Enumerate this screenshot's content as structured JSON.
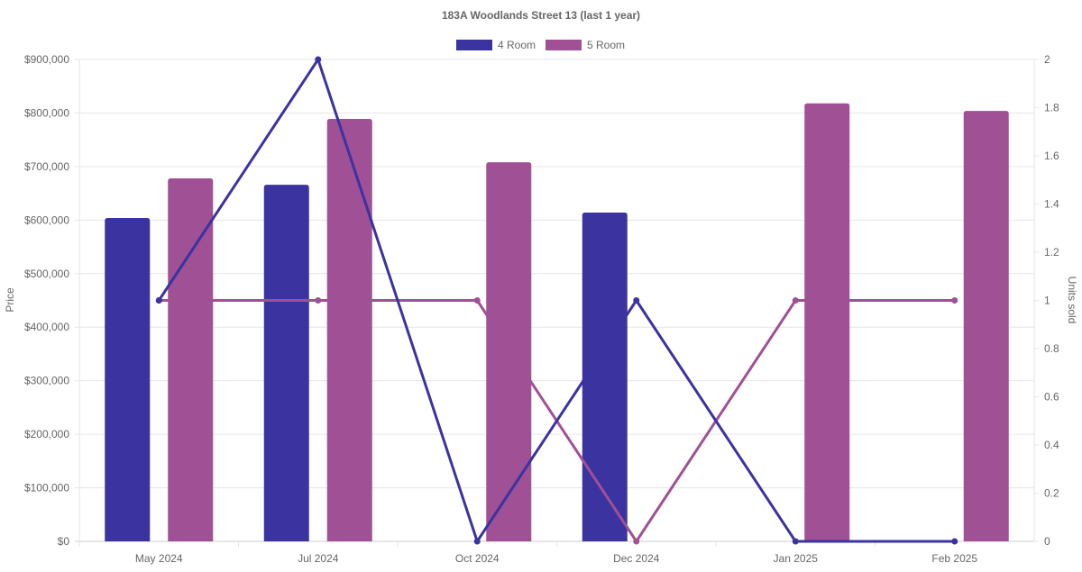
{
  "chart_data": {
    "type": "bar",
    "title": "183A Woodlands Street 13 (last 1 year)",
    "categories": [
      "May 2024",
      "Jul 2024",
      "Oct 2024",
      "Dec 2024",
      "Jan 2025",
      "Feb 2025"
    ],
    "ylabel": "Price",
    "y2label": "Units sold",
    "ylim": [
      0,
      900000
    ],
    "y2lim": [
      0,
      2
    ],
    "yticks": [
      "$0",
      "$100,000",
      "$200,000",
      "$300,000",
      "$400,000",
      "$500,000",
      "$600,000",
      "$700,000",
      "$800,000",
      "$900,000"
    ],
    "y2ticks": [
      "0",
      "0.2",
      "0.4",
      "0.6",
      "0.8",
      "1",
      "1.2",
      "1.4",
      "1.6",
      "1.8",
      "2"
    ],
    "legend_position": "top",
    "grid": true,
    "series": [
      {
        "name": "4 Room",
        "color": "#3a33a0",
        "price": [
          604000,
          666000,
          null,
          614000,
          null,
          null
        ],
        "units": [
          1,
          2,
          0,
          1,
          0,
          0
        ]
      },
      {
        "name": "5 Room",
        "color": "#a05094",
        "price": [
          678000,
          789000,
          708000,
          null,
          818000,
          804000
        ],
        "units": [
          1,
          1,
          1,
          0,
          1,
          1
        ]
      }
    ]
  }
}
